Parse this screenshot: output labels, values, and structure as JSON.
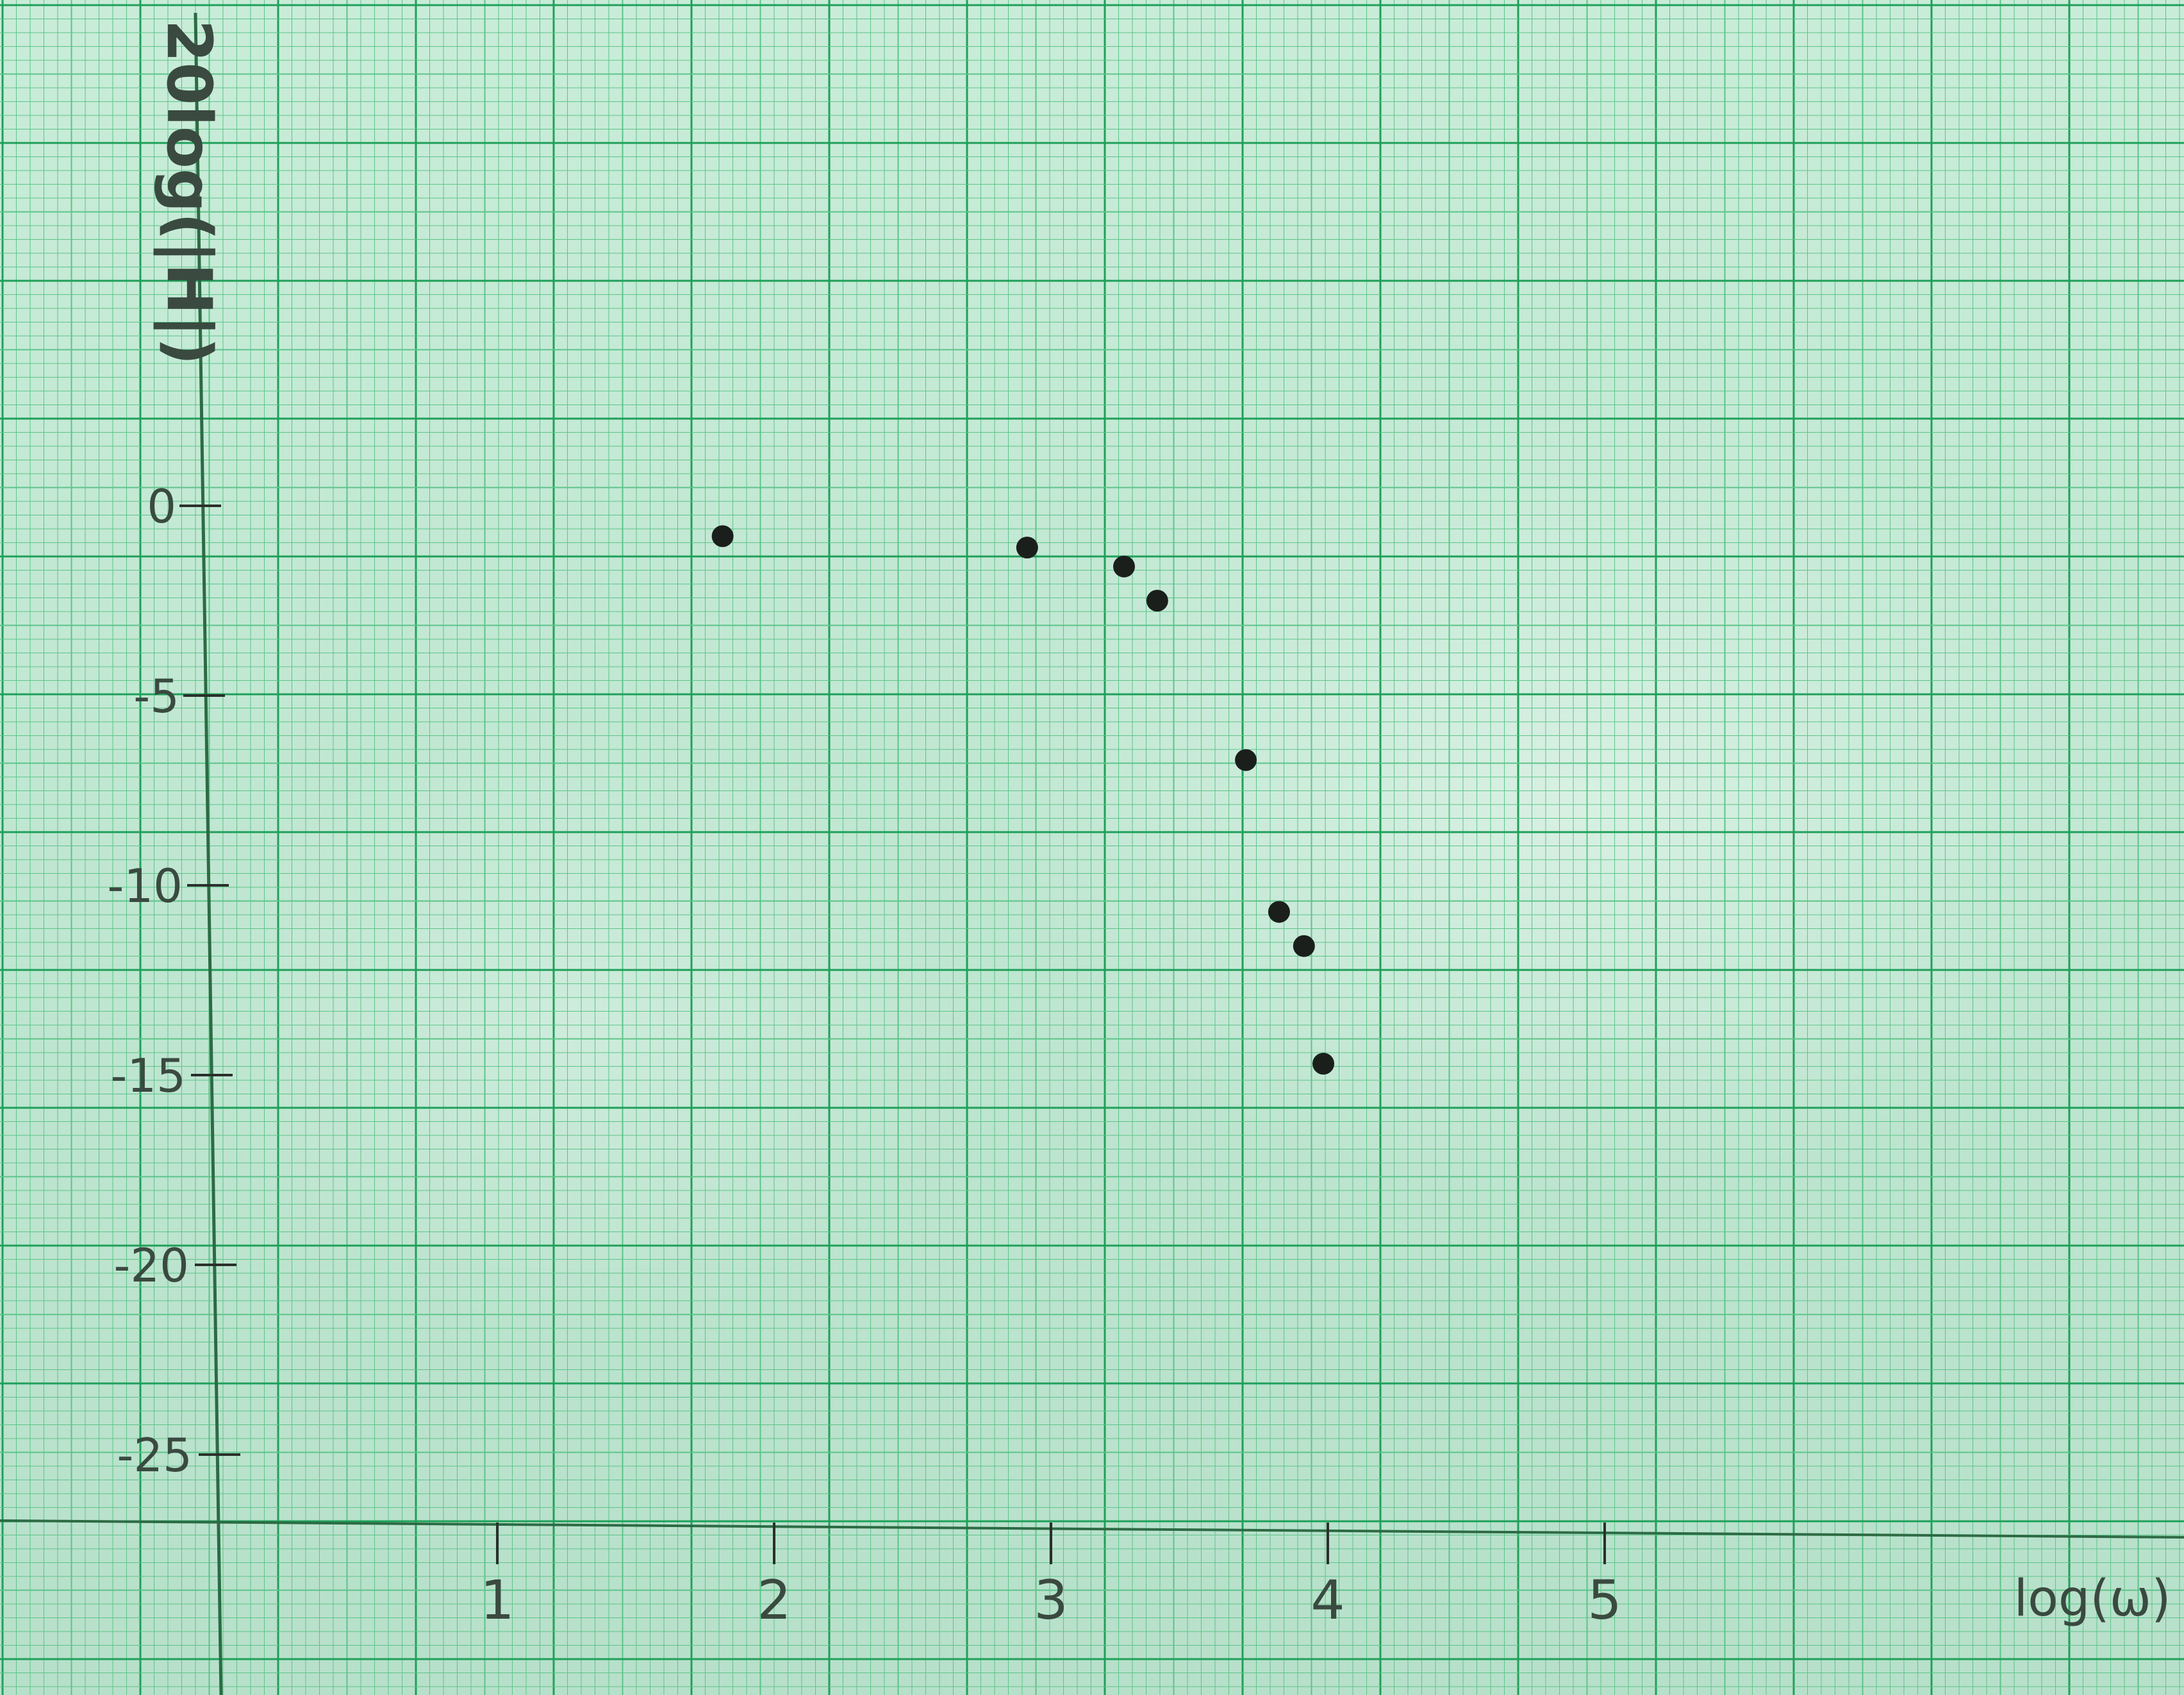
{
  "chart_data": {
    "type": "scatter",
    "title": "",
    "xlabel": "log(ω)",
    "ylabel": "20log(|H|)",
    "x_ticks": [
      "1",
      "2",
      "3",
      "4",
      "5"
    ],
    "y_ticks": [
      "0",
      "-5",
      "-10",
      "-15",
      "-20",
      "-25"
    ],
    "xlim": [
      0,
      7
    ],
    "ylim": [
      -26,
      13
    ],
    "grid": true,
    "series": [
      {
        "points": [
          {
            "x": 1.8,
            "y": -0.8
          },
          {
            "x": 2.9,
            "y": -1.1
          },
          {
            "x": 3.25,
            "y": -1.6
          },
          {
            "x": 3.37,
            "y": -2.5
          },
          {
            "x": 3.69,
            "y": -6.7
          },
          {
            "x": 3.81,
            "y": -10.7
          },
          {
            "x": 3.9,
            "y": -11.6
          },
          {
            "x": 3.97,
            "y": -14.7
          }
        ]
      }
    ],
    "colors": {
      "paper": "#c3e9d4",
      "grid_major": "#1fa05a",
      "grid_minor": "#5cc48a",
      "ink": "#1b1f1c"
    }
  }
}
